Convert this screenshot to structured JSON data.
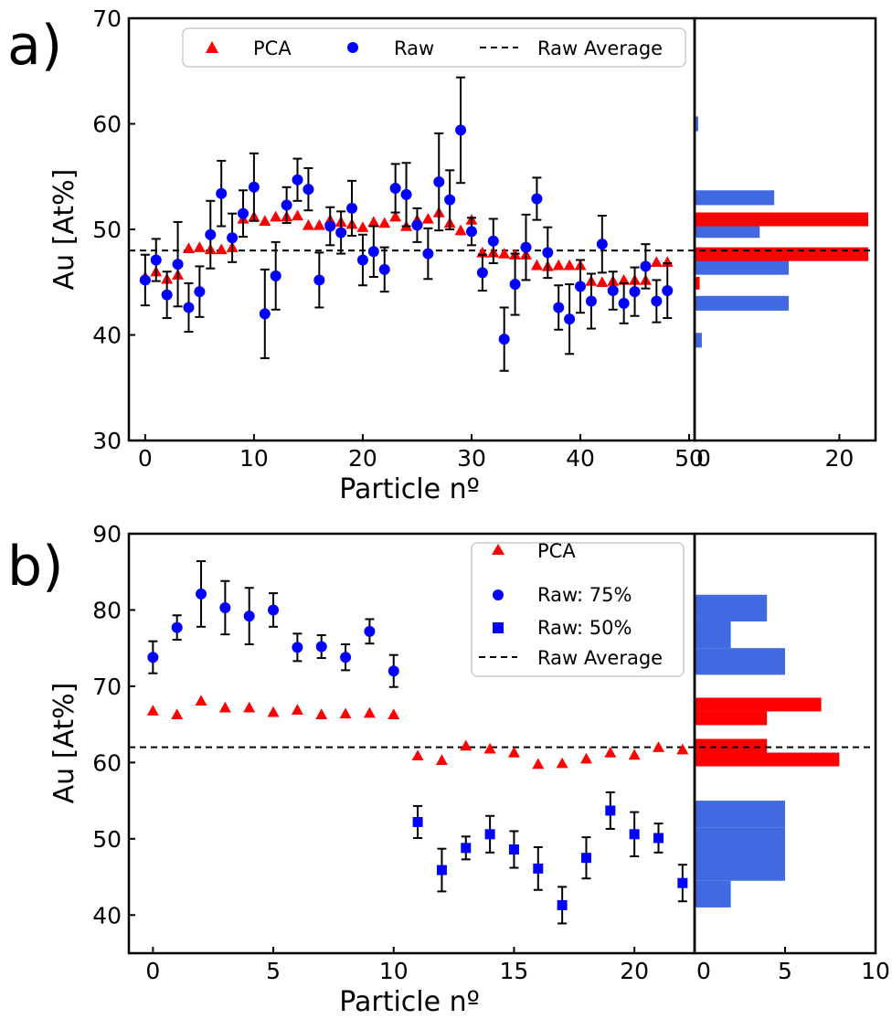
{
  "colors": {
    "pca": "#ff0000",
    "raw": "#0000ff",
    "hist_blue": "#4169e1",
    "hist_red": "#ff0000",
    "avg": "#000000"
  },
  "chart_data": [
    {
      "panel_label": "a)",
      "type": "scatter",
      "xlabel": "Particle nº",
      "ylabel": "Au [At%]",
      "xlim": [
        -1.5,
        50.5
      ],
      "ylim": [
        30,
        70
      ],
      "xticks": [
        "0",
        "10",
        "20",
        "30",
        "40",
        "50"
      ],
      "yticks": [
        "30",
        "40",
        "50",
        "60",
        "70"
      ],
      "legend": {
        "placement": "top",
        "entries": [
          "PCA",
          "Raw",
          "Raw Average"
        ]
      },
      "raw_average": 48,
      "series": [
        {
          "name": "PCA",
          "marker": "triangle",
          "x": [
            0,
            1,
            2,
            3,
            4,
            5,
            6,
            7,
            8,
            9,
            10,
            11,
            12,
            13,
            14,
            15,
            16,
            17,
            18,
            19,
            20,
            21,
            22,
            23,
            24,
            25,
            26,
            27,
            28,
            29,
            30,
            31,
            32,
            33,
            34,
            35,
            36,
            37,
            38,
            39,
            40,
            41,
            42,
            43,
            44,
            45,
            46,
            47,
            48
          ],
          "y": [
            45.5,
            46,
            45.3,
            45.7,
            48.2,
            48.3,
            48.1,
            48.1,
            48.3,
            51.0,
            51.2,
            50.8,
            51.2,
            51.2,
            51.3,
            50.4,
            50.4,
            50.9,
            50.7,
            50.5,
            50.2,
            50.7,
            50.6,
            51.2,
            50.3,
            50.9,
            51.0,
            51.6,
            50.6,
            49.9,
            50.9,
            47.8,
            47.8,
            47.7,
            47.6,
            47.6,
            46.6,
            46.5,
            46.6,
            46.6,
            46.6,
            45.1,
            45.0,
            45.1,
            45.2,
            45.2,
            45.2,
            46.9,
            46.9
          ]
        },
        {
          "name": "Raw",
          "marker": "circle",
          "x": [
            0,
            1,
            2,
            3,
            4,
            5,
            6,
            7,
            8,
            9,
            10,
            11,
            12,
            13,
            14,
            15,
            16,
            17,
            18,
            19,
            20,
            21,
            22,
            23,
            24,
            25,
            26,
            27,
            28,
            29,
            30,
            31,
            32,
            33,
            34,
            35,
            36,
            37,
            38,
            39,
            40,
            41,
            42,
            43,
            44,
            45,
            46,
            47,
            48
          ],
          "y": [
            45.2,
            47.1,
            43.8,
            46.7,
            42.6,
            44.1,
            49.5,
            53.4,
            49.2,
            51.5,
            54.0,
            42.0,
            45.6,
            52.3,
            54.7,
            53.8,
            45.2,
            50.3,
            49.7,
            52.0,
            47.1,
            47.9,
            46.2,
            53.9,
            53.3,
            50.4,
            47.7,
            54.5,
            52.8,
            59.4,
            49.8,
            45.9,
            48.9,
            39.6,
            44.8,
            48.3,
            52.9,
            47.8,
            42.6,
            41.5,
            44.6,
            43.2,
            48.6,
            44.2,
            43.0,
            44.1,
            46.5,
            43.2,
            44.2
          ],
          "err": [
            2.4,
            2.0,
            2.2,
            4.0,
            2.3,
            2.4,
            3.2,
            3.1,
            2.3,
            2.2,
            3.2,
            4.2,
            3.2,
            1.7,
            2.0,
            2.0,
            2.6,
            1.8,
            2.0,
            2.6,
            2.4,
            2.4,
            2.1,
            2.3,
            3.0,
            1.6,
            2.4,
            4.6,
            2.8,
            5.0,
            1.3,
            1.7,
            2.1,
            3.0,
            2.9,
            3.1,
            2.0,
            2.4,
            2.1,
            3.3,
            2.5,
            2.6,
            2.7,
            1.8,
            1.9,
            2.3,
            2.1,
            2.0,
            2.6
          ]
        }
      ],
      "histogram": {
        "xlim": [
          0,
          25
        ],
        "xticks": [
          "0",
          "20"
        ],
        "blue_bins": [
          {
            "lo": 38.8,
            "hi": 40.2,
            "count": 1
          },
          {
            "lo": 42.3,
            "hi": 43.7,
            "count": 13
          },
          {
            "lo": 45.7,
            "hi": 47.1,
            "count": 13
          },
          {
            "lo": 49.2,
            "hi": 50.6,
            "count": 9
          },
          {
            "lo": 52.3,
            "hi": 53.7,
            "count": 11
          },
          {
            "lo": 59.3,
            "hi": 60.7,
            "count": 0.5
          }
        ],
        "red_bins": [
          {
            "lo": 44.3,
            "hi": 45.5,
            "count": 0.7
          },
          {
            "lo": 47.0,
            "hi": 48.3,
            "count": 24
          },
          {
            "lo": 50.3,
            "hi": 51.6,
            "count": 24
          }
        ]
      }
    },
    {
      "panel_label": "b)",
      "type": "scatter",
      "xlabel": "Particle nº",
      "ylabel": "Au [At%]",
      "xlim": [
        -1,
        22.5
      ],
      "ylim": [
        35,
        90
      ],
      "xticks": [
        "0",
        "5",
        "10",
        "15",
        "20"
      ],
      "yticks": [
        "40",
        "50",
        "60",
        "70",
        "80",
        "90"
      ],
      "legend": {
        "placement": "top-right",
        "entries": [
          "PCA",
          "Raw: 75%",
          "Raw: 50%",
          "Raw Average"
        ]
      },
      "raw_average": 62,
      "series": [
        {
          "name": "PCA",
          "marker": "triangle",
          "x": [
            0,
            1,
            2,
            3,
            4,
            5,
            6,
            7,
            8,
            9,
            10,
            11,
            12,
            13,
            14,
            15,
            16,
            17,
            18,
            19,
            20,
            21,
            22
          ],
          "y": [
            66.8,
            66.3,
            68.1,
            67.2,
            67.2,
            66.6,
            66.9,
            66.3,
            66.4,
            66.5,
            66.3,
            60.9,
            60.3,
            62.2,
            61.8,
            61.3,
            59.8,
            59.9,
            60.5,
            61.3,
            61.0,
            62.0,
            61.7
          ]
        },
        {
          "name": "Raw: 75%",
          "marker": "circle",
          "x": [
            0,
            1,
            2,
            3,
            4,
            5,
            6,
            7,
            8,
            9,
            10
          ],
          "y": [
            73.8,
            77.7,
            82.1,
            80.3,
            79.2,
            80.0,
            75.1,
            75.2,
            73.8,
            77.2,
            72.0
          ],
          "err": [
            2.1,
            1.6,
            4.3,
            3.5,
            3.7,
            2.2,
            1.8,
            1.5,
            1.7,
            1.6,
            2.1
          ]
        },
        {
          "name": "Raw: 50%",
          "marker": "square",
          "x": [
            11,
            12,
            13,
            14,
            15,
            16,
            17,
            18,
            19,
            20,
            21,
            22
          ],
          "y": [
            52.2,
            45.9,
            48.8,
            50.6,
            48.6,
            46.1,
            41.3,
            47.5,
            53.7,
            50.6,
            50.1,
            44.2
          ],
          "err": [
            2.1,
            2.8,
            1.5,
            2.4,
            2.4,
            2.8,
            2.4,
            2.7,
            2.4,
            2.9,
            1.9,
            2.4
          ]
        }
      ],
      "histogram": {
        "xlim": [
          0,
          10
        ],
        "xticks": [
          "0",
          "5",
          "10"
        ],
        "blue_bins": [
          {
            "lo": 41.0,
            "hi": 44.5,
            "count": 2
          },
          {
            "lo": 44.5,
            "hi": 48.0,
            "count": 5
          },
          {
            "lo": 48.0,
            "hi": 51.5,
            "count": 5
          },
          {
            "lo": 51.5,
            "hi": 55.0,
            "count": 5
          },
          {
            "lo": 71.5,
            "hi": 75.0,
            "count": 5
          },
          {
            "lo": 75.0,
            "hi": 78.5,
            "count": 2
          },
          {
            "lo": 78.5,
            "hi": 82.0,
            "count": 4
          }
        ],
        "red_bins": [
          {
            "lo": 59.5,
            "hi": 61.3,
            "count": 8
          },
          {
            "lo": 61.3,
            "hi": 63.1,
            "count": 4
          },
          {
            "lo": 64.9,
            "hi": 66.7,
            "count": 4
          },
          {
            "lo": 66.7,
            "hi": 68.5,
            "count": 7
          }
        ]
      }
    }
  ]
}
